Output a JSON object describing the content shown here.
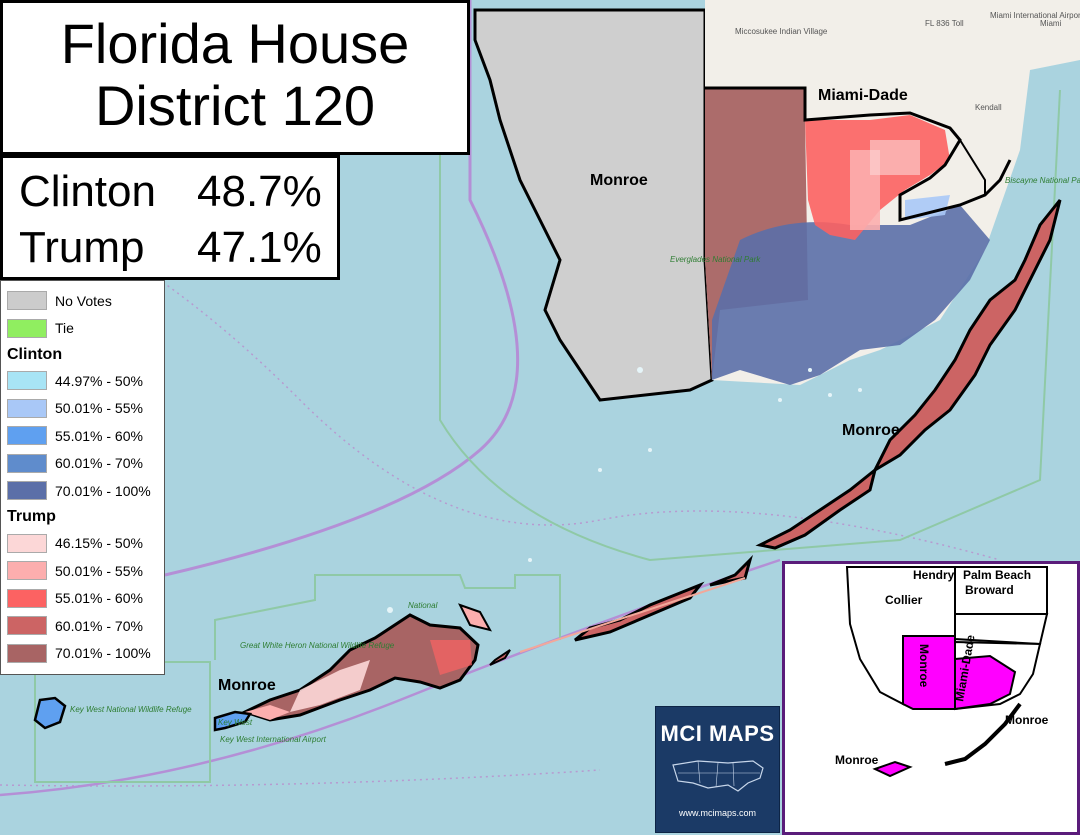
{
  "title": {
    "line1": "Florida House",
    "line2": "District 120"
  },
  "results": [
    {
      "candidate": "Clinton",
      "pct": "48.7%"
    },
    {
      "candidate": "Trump",
      "pct": "47.1%"
    }
  ],
  "legend": {
    "general": [
      {
        "label": "No Votes",
        "color": "#cccccc"
      },
      {
        "label": "Tie",
        "color": "#90ee60"
      }
    ],
    "clinton_heading": "Clinton",
    "clinton": [
      {
        "label": "44.97% - 50%",
        "color": "#a8e4f5"
      },
      {
        "label": "50.01% - 55%",
        "color": "#a9c8f7"
      },
      {
        "label": "55.01% - 60%",
        "color": "#5fa0f0"
      },
      {
        "label": "60.01% - 70%",
        "color": "#5f8ccc"
      },
      {
        "label": "70.01% - 100%",
        "color": "#5b6fa8"
      }
    ],
    "trump_heading": "Trump",
    "trump": [
      {
        "label": "46.15% - 50%",
        "color": "#fcd7d7"
      },
      {
        "label": "50.01% - 55%",
        "color": "#fcaeae"
      },
      {
        "label": "55.01% - 60%",
        "color": "#fc6262"
      },
      {
        "label": "60.01% - 70%",
        "color": "#cc6464"
      },
      {
        "label": "70.01% - 100%",
        "color": "#a86464"
      }
    ]
  },
  "map_labels": {
    "monroe_mainland": "Monroe",
    "miami_dade": "Miami-Dade",
    "monroe_keys": "Monroe",
    "monroe_west": "Monroe",
    "everglades_park": "Everglades National Park",
    "biscayne_park": "Biscayne National Park",
    "great_white_heron": "Great White Heron National Wildlife Refuge",
    "key_west_refuge": "Key West National Wildlife Refuge",
    "key_west": "Key West",
    "key_west_airport": "Key West International Airport",
    "miccosukee": "Miccosukee Indian Village",
    "kendall": "Kendall",
    "miami": "Miami",
    "fl836": "FL 836 Toll",
    "miami_airport": "Miami International Airport",
    "national_key": "National"
  },
  "inset": {
    "counties": [
      "Hendry",
      "Palm Beach",
      "Broward",
      "Collier",
      "Monroe",
      "Miami-Dade",
      "Monroe",
      "Monroe"
    ],
    "highlight_color": "#ff00ff"
  },
  "logo": {
    "title": "MCI MAPS",
    "url": "www.mcimaps.com"
  }
}
